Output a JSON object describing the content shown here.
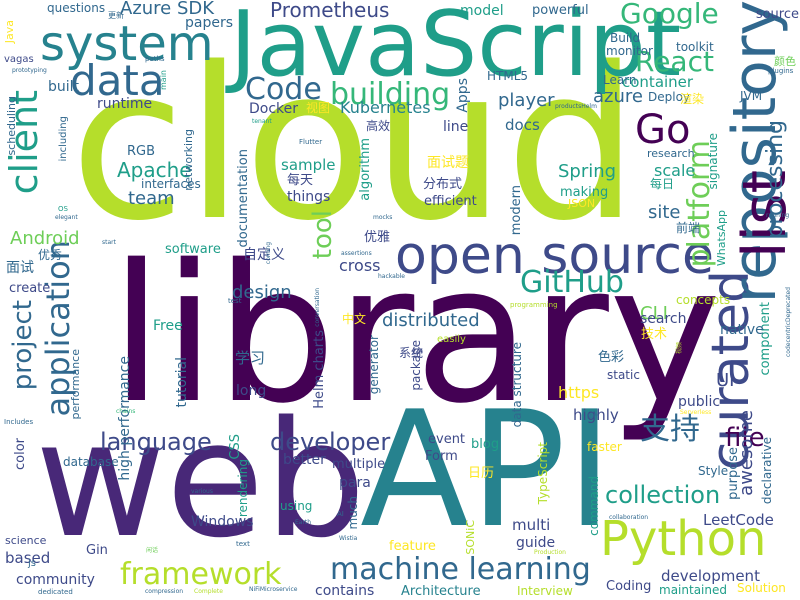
{
  "palette": {
    "dark_purple": "#440154",
    "indigo": "#482878",
    "blue": "#3e4a89",
    "steel": "#31688e",
    "teal": "#26828e",
    "sea": "#1f9e89",
    "green": "#35b779",
    "lime": "#6ece58",
    "yellow_green": "#b5de2b",
    "yellow": "#fde725"
  },
  "words": [
    "library",
    "cloud",
    "web",
    "API",
    "JavaScript",
    "open source",
    "curated",
    "repository",
    "list",
    "system",
    "data",
    "client",
    "Python",
    "machine learning",
    "framework",
    "application",
    "Code",
    "building",
    "Go",
    "React",
    "Google",
    "platform",
    "支持",
    "GitHub",
    "project",
    "language",
    "developer",
    "collection",
    "file",
    "Prometheus",
    "Azure SDK",
    "tool",
    "distributed",
    "processing",
    "Spring",
    "Android",
    "awesome",
    "CLI",
    "UI",
    "team",
    "Apache",
    "design",
    "player",
    "azure",
    "docs",
    "site",
    "scale",
    "Kubernetes",
    "container",
    "source",
    "powerful",
    "model",
    "papers",
    "questions",
    "toolkit",
    "Build",
    "monitor",
    "Learn",
    "HTML5",
    "Apps",
    "runtime",
    "built",
    "Docker",
    "视图",
    "高效",
    "line",
    "Deploy",
    "渲染",
    "JVM",
    "research",
    "每日",
    "面试题",
    "分布式",
    "sample",
    "things",
    "每天",
    "interfaces",
    "RGB",
    "documentation",
    "algorithm",
    "signature",
    "WhatsApp",
    "前端",
    "making",
    "JSON",
    "modern",
    "efficient",
    "自定义",
    "优雅",
    "software",
    "cross",
    "Free",
    "search",
    "component",
    "concepts",
    "技术",
    "中文",
    "native",
    "学习",
    "tutorial",
    "high performance",
    "Helm charts",
    "data structure",
    "generator",
    "package",
    "系统",
    "色彩",
    "static",
    "https",
    "highly",
    "public",
    "purpose",
    "declarative",
    "long",
    "event",
    "better",
    "multiple",
    "color",
    "database",
    "CSS",
    "rendering",
    "Form",
    "blog",
    "日历",
    "TypeScript",
    "faster",
    "Style",
    "para",
    "much",
    "multi",
    "guide",
    "feature",
    "SONiC",
    "command",
    "LeetCode",
    "development",
    "Coding",
    "Solution",
    "maintained",
    "Interview",
    "Architecture",
    "contains",
    "Windows",
    "using",
    "Gin",
    "based",
    "community",
    "science",
    "create",
    "面试",
    "优秀",
    "performance",
    "networking",
    "scheduling",
    "including",
    "Java",
    "vagas",
    "颜色",
    "更新",
    "paths",
    "main",
    "plugins",
    "prototyping",
    "tenant",
    "Flutter",
    "mocks",
    "OS",
    "elegant",
    "start",
    "coming",
    "assertions",
    "test",
    "hackable",
    "conversation",
    "programming",
    "easily",
    "productsHelm",
    "running",
    "codecentricDeprecated",
    "Includes",
    "chains",
    "Serverless",
    "插件",
    "视频",
    "various",
    "Earth",
    "AI",
    "Wistia",
    "text",
    "Production",
    "collaboration",
    "dedicated",
    "compression",
    "Complete",
    "NiFiMicroservice",
    "js",
    "闲话"
  ]
}
